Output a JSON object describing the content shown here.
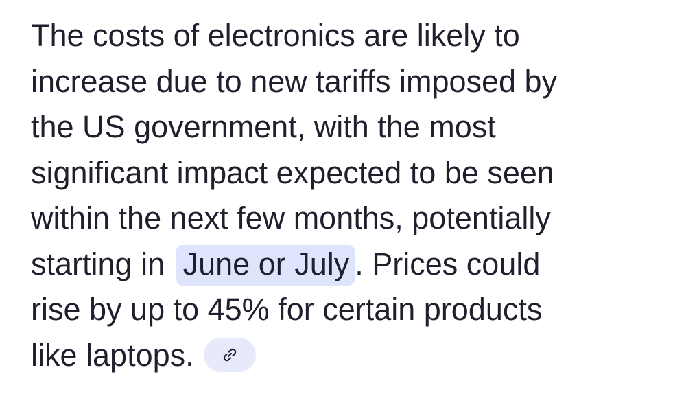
{
  "paragraph": {
    "lines": [
      "The costs of electronics are likely to",
      "increase due to new tariffs imposed by",
      "the US government, with the most",
      "significant impact expected to be seen",
      "within the next few months, potentially"
    ],
    "highlight_line": {
      "before": "starting in ",
      "highlight": "June or July",
      "after": ". Prices could"
    },
    "lines_after": [
      "rise by up to 45% for certain products",
      "like laptops."
    ]
  }
}
